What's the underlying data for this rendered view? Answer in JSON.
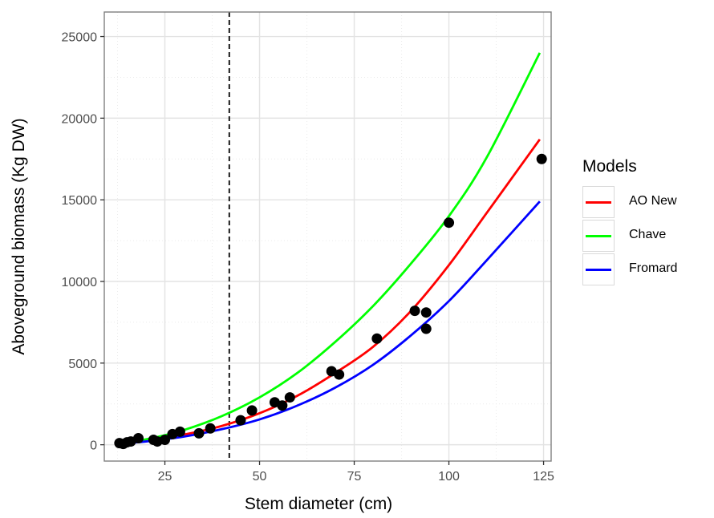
{
  "chart_data": {
    "type": "scatter",
    "xlabel": "Stem diameter (cm)",
    "ylabel": "Aboveground biomass (Kg DW)",
    "xlim": [
      9,
      127
    ],
    "ylim": [
      -1000,
      26500
    ],
    "x_ticks": [
      25,
      50,
      75,
      100,
      125
    ],
    "y_ticks": [
      0,
      5000,
      10000,
      15000,
      20000,
      25000
    ],
    "x_tick_labels": [
      "25",
      "50",
      "75",
      "100",
      "125"
    ],
    "y_tick_labels": [
      "0",
      "5000",
      "10000",
      "15000",
      "20000",
      "25000"
    ],
    "grid": true,
    "vline": {
      "x": 42,
      "style": "dashed",
      "color": "#000000"
    },
    "points": [
      {
        "x": 13,
        "y": 100
      },
      {
        "x": 14,
        "y": 50
      },
      {
        "x": 15,
        "y": 150
      },
      {
        "x": 16,
        "y": 200
      },
      {
        "x": 18,
        "y": 400
      },
      {
        "x": 22,
        "y": 300
      },
      {
        "x": 23,
        "y": 200
      },
      {
        "x": 25,
        "y": 300
      },
      {
        "x": 27,
        "y": 650
      },
      {
        "x": 29,
        "y": 800
      },
      {
        "x": 34,
        "y": 700
      },
      {
        "x": 37,
        "y": 1000
      },
      {
        "x": 45,
        "y": 1500
      },
      {
        "x": 48,
        "y": 2100
      },
      {
        "x": 54,
        "y": 2600
      },
      {
        "x": 56,
        "y": 2400
      },
      {
        "x": 58,
        "y": 2900
      },
      {
        "x": 69,
        "y": 4500
      },
      {
        "x": 71,
        "y": 4300
      },
      {
        "x": 81,
        "y": 6500
      },
      {
        "x": 91,
        "y": 8200
      },
      {
        "x": 94,
        "y": 7100
      },
      {
        "x": 94,
        "y": 8100
      },
      {
        "x": 100,
        "y": 13600
      },
      {
        "x": 124.5,
        "y": 17500
      }
    ],
    "series": [
      {
        "name": "AO New",
        "color": "#ff0000",
        "x": [
          13,
          20,
          30,
          40,
          50,
          60,
          70,
          80,
          90,
          100,
          110,
          124
        ],
        "y": [
          80,
          250,
          620,
          1150,
          1930,
          3000,
          4400,
          6000,
          8200,
          11000,
          14200,
          18700
        ]
      },
      {
        "name": "Chave",
        "color": "#00ff00",
        "x": [
          13,
          20,
          30,
          40,
          50,
          60,
          70,
          80,
          90,
          100,
          110,
          124
        ],
        "y": [
          100,
          330,
          900,
          1750,
          2900,
          4400,
          6300,
          8500,
          11100,
          14000,
          17600,
          24000
        ]
      },
      {
        "name": "Fromard",
        "color": "#0000ff",
        "x": [
          13,
          20,
          30,
          40,
          50,
          60,
          70,
          80,
          90,
          100,
          110,
          124
        ],
        "y": [
          60,
          200,
          500,
          950,
          1550,
          2400,
          3500,
          4900,
          6700,
          8800,
          11300,
          14900
        ]
      }
    ]
  },
  "legend": {
    "title": "Models",
    "items": [
      {
        "label": "AO New",
        "color": "#ff0000"
      },
      {
        "label": "Chave",
        "color": "#00ff00"
      },
      {
        "label": "Fromard",
        "color": "#0000ff"
      }
    ]
  }
}
